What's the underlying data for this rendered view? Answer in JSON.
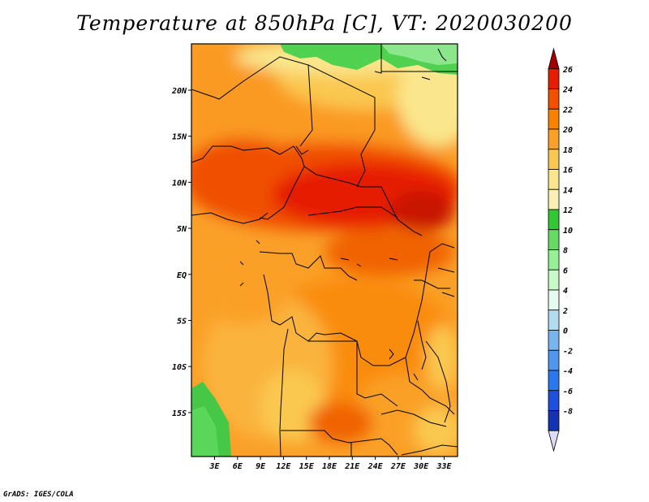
{
  "title": "Temperature at 850hPa [C], VT: 2020030200",
  "credit": "GrADS: IGES/COLA",
  "map": {
    "lat_labels": [
      "20N",
      "15N",
      "10N",
      "5N",
      "EQ",
      "5S",
      "10S",
      "15S"
    ],
    "lon_labels": [
      "3E",
      "6E",
      "9E",
      "12E",
      "15E",
      "18E",
      "21E",
      "24E",
      "27E",
      "30E",
      "33E"
    ]
  },
  "colorbar": {
    "labels": [
      "26",
      "24",
      "22",
      "20",
      "18",
      "16",
      "14",
      "12",
      "10",
      "8",
      "6",
      "4",
      "2",
      "0",
      "-2",
      "-4",
      "-6",
      "-8"
    ],
    "colors": [
      "#a50000",
      "#e61e00",
      "#f05000",
      "#fa8200",
      "#faa028",
      "#fac850",
      "#fae68c",
      "#faf0b4",
      "#32c832",
      "#64dc64",
      "#96f096",
      "#c8fac8",
      "#e6faf0",
      "#b4dcf0",
      "#78b4f0",
      "#5096f0",
      "#2878f0",
      "#1e50dc",
      "#1432b4",
      "#000f78"
    ]
  }
}
